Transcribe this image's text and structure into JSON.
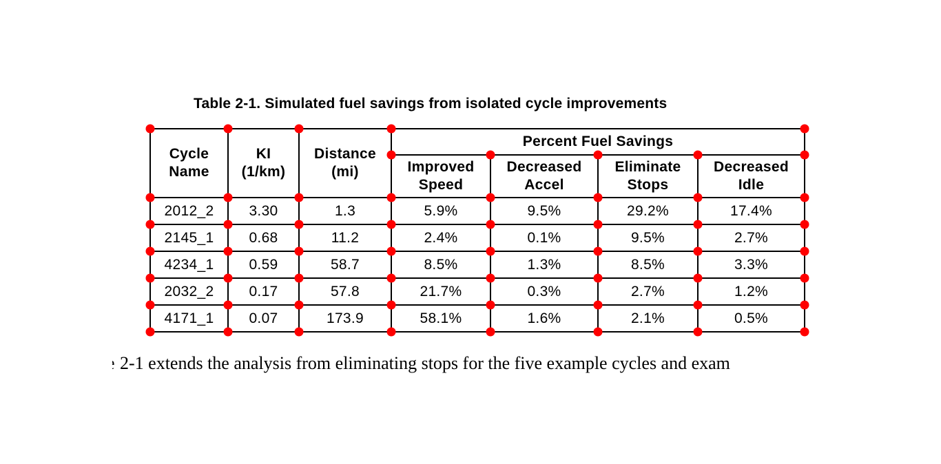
{
  "page": {
    "title": "Table 2-1. Simulated fuel savings from isolated cycle improvements",
    "body_fragment": "e",
    "body_sentence": "2-1 extends the analysis from eliminating stops for the five example cycles and exam"
  },
  "table": {
    "header": {
      "cycle_name": "Cycle\nName",
      "ki": "KI\n(1/km)",
      "distance": "Distance\n(mi)",
      "group": "Percent Fuel Savings",
      "improved_speed": "Improved\nSpeed",
      "decreased_accel": "Decreased\nAccel",
      "eliminate_stops": "Eliminate\nStops",
      "decreased_idle": "Decreased\nIdle"
    },
    "rows": [
      [
        "2012_2",
        "3.30",
        "1.3",
        "5.9%",
        "9.5%",
        "29.2%",
        "17.4%"
      ],
      [
        "2145_1",
        "0.68",
        "11.2",
        "2.4%",
        "0.1%",
        "9.5%",
        "2.7%"
      ],
      [
        "4234_1",
        "0.59",
        "58.7",
        "8.5%",
        "1.3%",
        "8.5%",
        "3.3%"
      ],
      [
        "2032_2",
        "0.17",
        "57.8",
        "21.7%",
        "0.3%",
        "2.7%",
        "1.2%"
      ],
      [
        "4171_1",
        "0.07",
        "173.9",
        "58.1%",
        "1.6%",
        "2.1%",
        "0.5%"
      ]
    ]
  },
  "annotations": {
    "dot_color": "#ff0000"
  }
}
